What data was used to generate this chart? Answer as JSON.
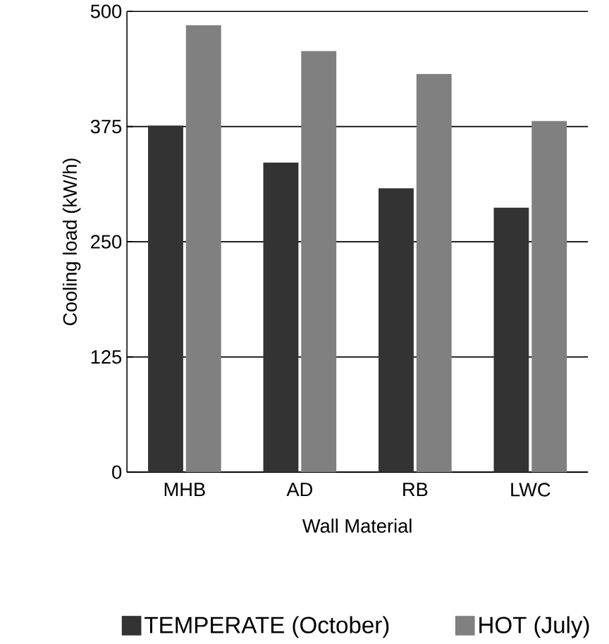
{
  "chart_data": {
    "type": "bar",
    "xlabel": "Wall Material",
    "ylabel": "Cooling load (kW/h)",
    "categories": [
      "MHB",
      "AD",
      "RB",
      "LWC"
    ],
    "series": [
      {
        "name": "TEMPERATE (October)",
        "color": "#333333",
        "values": [
          376,
          336,
          308,
          287
        ]
      },
      {
        "name": "HOT (July)",
        "color": "#808080",
        "values": [
          485,
          457,
          432,
          381
        ]
      }
    ],
    "ylim": [
      0,
      500
    ],
    "yticks": [
      0,
      125,
      250,
      375,
      500
    ],
    "grid": "y",
    "legend": "bottom"
  }
}
